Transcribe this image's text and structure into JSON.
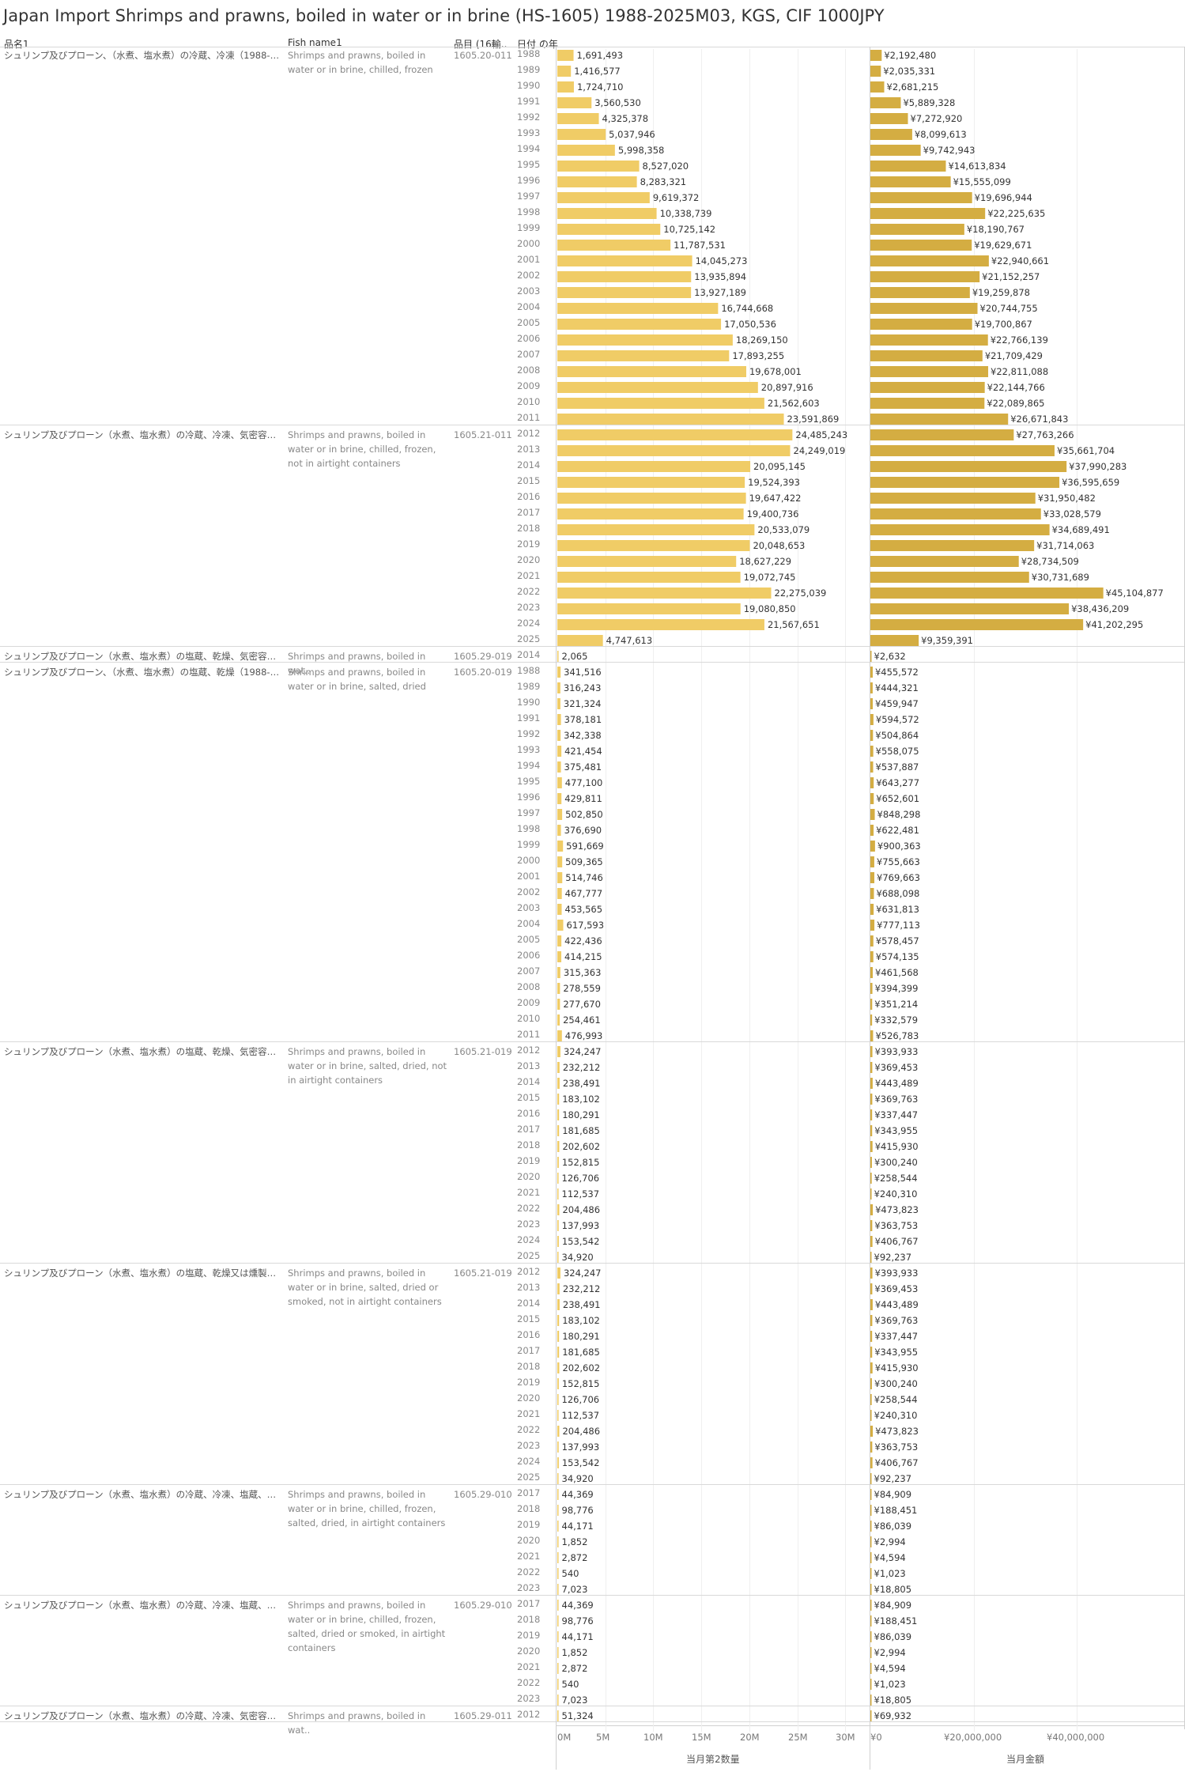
{
  "title": "Japan Import Shrimps and prawns, boiled in water or in brine (HS-1605) 1988-2025M03, KGS, CIF 1000JPY",
  "headers": {
    "col_name": "品名1",
    "col_fish": "Fish name1",
    "col_code": "品目 (16輸..",
    "col_year": "日付 の年"
  },
  "axes": {
    "qty_title": "当月第2数量",
    "val_title": "当月金額",
    "qty_ticks": [
      "0M",
      "5M",
      "10M",
      "15M",
      "20M",
      "25M",
      "30M"
    ],
    "val_ticks": [
      "¥0",
      "¥20,000,000",
      "¥40,000,000"
    ]
  },
  "colors": {
    "qty_bar": "#f0cc66",
    "val_bar": "#d4ad42",
    "grid": "#efefef",
    "separator": "#d9d9d9"
  },
  "chart_data": {
    "type": "bar",
    "orientation": "horizontal",
    "qty_axis": {
      "label": "当月第2数量",
      "range": [
        0,
        31700000
      ]
    },
    "val_axis": {
      "label": "当月金額",
      "range": [
        0,
        59700000
      ],
      "prefix": "¥"
    },
    "groups": [
      {
        "name": "シュリンプ及びプローン、（水煮、塩水煮）の冷蔵、冷凍（1988-2011..",
        "fish": "Shrimps and prawns, boiled in water or in brine, chilled, frozen",
        "code": "1605.20-011",
        "years": [
          1988,
          1989,
          1990,
          1991,
          1992,
          1993,
          1994,
          1995,
          1996,
          1997,
          1998,
          1999,
          2000,
          2001,
          2002,
          2003,
          2004,
          2005,
          2006,
          2007,
          2008,
          2009,
          2010,
          2011
        ],
        "qty": [
          1691493,
          1416577,
          1724710,
          3560530,
          4325378,
          5037946,
          5998358,
          8527020,
          8283321,
          9619372,
          10338739,
          10725142,
          11787531,
          14045273,
          13935894,
          13927189,
          16744668,
          17050536,
          18269150,
          17893255,
          19678001,
          20897916,
          21562603,
          23591869
        ],
        "qty_labels": [
          "1,691,493",
          "1,416,577",
          "1,724,710",
          "3,560,530",
          "4,325,378",
          "5,037,946",
          "5,998,358",
          "8,527,020",
          "8,283,321",
          "9,619,372",
          "10,338,739",
          "10,725,142",
          "11,787,531",
          "14,045,273",
          "13,935,894",
          "13,927,189",
          "16,744,668",
          "17,050,536",
          "18,269,150",
          "17,893,255",
          "19,678,001",
          "20,897,916",
          "21,562,603",
          "23,591,869"
        ],
        "val": [
          2192480,
          2035331,
          2681215,
          5889328,
          7272920,
          8099613,
          9742943,
          14613834,
          15555099,
          19696944,
          22225635,
          18190767,
          19629671,
          22940661,
          21152257,
          19259878,
          20744755,
          19700867,
          22766139,
          21709429,
          22811088,
          22144766,
          22089865,
          26671843
        ],
        "val_labels": [
          "¥2,192,480",
          "¥2,035,331",
          "¥2,681,215",
          "¥5,889,328",
          "¥7,272,920",
          "¥8,099,613",
          "¥9,742,943",
          "¥14,613,834",
          "¥15,555,099",
          "¥19,696,944",
          "¥22,225,635",
          "¥18,190,767",
          "¥19,629,671",
          "¥22,940,661",
          "¥21,152,257",
          "¥19,259,878",
          "¥20,744,755",
          "¥19,700,867",
          "¥22,766,139",
          "¥21,709,429",
          "¥22,811,088",
          "¥22,144,766",
          "¥22,089,865",
          "¥26,671,843"
        ]
      },
      {
        "name": "シュリンプ及びプローン（水煮、塩水煮）の冷蔵、冷凍、気密容器入りで..",
        "fish": "Shrimps and prawns, boiled in water or in brine, chilled, frozen, not in airtight containers",
        "code": "1605.21-011",
        "years": [
          2012,
          2013,
          2014,
          2015,
          2016,
          2017,
          2018,
          2019,
          2020,
          2021,
          2022,
          2023,
          2024,
          2025
        ],
        "qty": [
          24485243,
          24249019,
          20095145,
          19524393,
          19647422,
          19400736,
          20533079,
          20048653,
          18627229,
          19072745,
          22275039,
          19080850,
          21567651,
          4747613
        ],
        "qty_labels": [
          "24,485,243",
          "24,249,019",
          "20,095,145",
          "19,524,393",
          "19,647,422",
          "19,400,736",
          "20,533,079",
          "20,048,653",
          "18,627,229",
          "19,072,745",
          "22,275,039",
          "19,080,850",
          "21,567,651",
          "4,747,613"
        ],
        "val": [
          27763266,
          35661704,
          37990283,
          36595659,
          31950482,
          33028579,
          34689491,
          31714063,
          28734509,
          30731689,
          45104877,
          38436209,
          41202295,
          9359391
        ],
        "val_labels": [
          "¥27,763,266",
          "¥35,661,704",
          "¥37,990,283",
          "¥36,595,659",
          "¥31,950,482",
          "¥33,028,579",
          "¥34,689,491",
          "¥31,714,063",
          "¥28,734,509",
          "¥30,731,689",
          "¥45,104,877",
          "¥38,436,209",
          "¥41,202,295",
          "¥9,359,391"
        ]
      },
      {
        "name": "シュリンプ及びプローン（水煮、塩水煮）の塩蔵、乾燥、気密容器入り..",
        "fish": "Shrimps and prawns, boiled in wat..",
        "code": "1605.29-019",
        "years": [
          2014
        ],
        "qty": [
          2065
        ],
        "qty_labels": [
          "2,065"
        ],
        "val": [
          2632
        ],
        "val_labels": [
          "¥2,632"
        ]
      },
      {
        "name": "シュリンプ及びプローン、（水煮、塩水煮）の塩蔵、乾燥（1988-2011..",
        "fish": "Shrimps and prawns, boiled in water or in brine, salted, dried",
        "code": "1605.20-019",
        "years": [
          1988,
          1989,
          1990,
          1991,
          1992,
          1993,
          1994,
          1995,
          1996,
          1997,
          1998,
          1999,
          2000,
          2001,
          2002,
          2003,
          2004,
          2005,
          2006,
          2007,
          2008,
          2009,
          2010,
          2011
        ],
        "qty": [
          341516,
          316243,
          321324,
          378181,
          342338,
          421454,
          375481,
          477100,
          429811,
          502850,
          376690,
          591669,
          509365,
          514746,
          467777,
          453565,
          617593,
          422436,
          414215,
          315363,
          278559,
          277670,
          254461,
          476993
        ],
        "qty_labels": [
          "341,516",
          "316,243",
          "321,324",
          "378,181",
          "342,338",
          "421,454",
          "375,481",
          "477,100",
          "429,811",
          "502,850",
          "376,690",
          "591,669",
          "509,365",
          "514,746",
          "467,777",
          "453,565",
          "617,593",
          "422,436",
          "414,215",
          "315,363",
          "278,559",
          "277,670",
          "254,461",
          "476,993"
        ],
        "val": [
          455572,
          444321,
          459947,
          594572,
          504864,
          558075,
          537887,
          643277,
          652601,
          848298,
          622481,
          900363,
          755663,
          769663,
          688098,
          631813,
          777113,
          578457,
          574135,
          461568,
          394399,
          351214,
          332579,
          526783
        ],
        "val_labels": [
          "¥455,572",
          "¥444,321",
          "¥459,947",
          "¥594,572",
          "¥504,864",
          "¥558,075",
          "¥537,887",
          "¥643,277",
          "¥652,601",
          "¥848,298",
          "¥622,481",
          "¥900,363",
          "¥755,663",
          "¥769,663",
          "¥688,098",
          "¥631,813",
          "¥777,113",
          "¥578,457",
          "¥574,135",
          "¥461,568",
          "¥394,399",
          "¥351,214",
          "¥332,579",
          "¥526,783"
        ]
      },
      {
        "name": "シュリンプ及びプローン（水煮、塩水煮）の塩蔵、乾燥、気密容器入りで..",
        "fish": "Shrimps and prawns, boiled in water or in brine, salted, dried, not in airtight containers",
        "code": "1605.21-019",
        "years": [
          2012,
          2013,
          2014,
          2015,
          2016,
          2017,
          2018,
          2019,
          2020,
          2021,
          2022,
          2023,
          2024,
          2025
        ],
        "qty": [
          324247,
          232212,
          238491,
          183102,
          180291,
          181685,
          202602,
          152815,
          126706,
          112537,
          204486,
          137993,
          153542,
          34920
        ],
        "qty_labels": [
          "324,247",
          "232,212",
          "238,491",
          "183,102",
          "180,291",
          "181,685",
          "202,602",
          "152,815",
          "126,706",
          "112,537",
          "204,486",
          "137,993",
          "153,542",
          "34,920"
        ],
        "val": [
          393933,
          369453,
          443489,
          369763,
          337447,
          343955,
          415930,
          300240,
          258544,
          240310,
          473823,
          363753,
          406767,
          92237
        ],
        "val_labels": [
          "¥393,933",
          "¥369,453",
          "¥443,489",
          "¥369,763",
          "¥337,447",
          "¥343,955",
          "¥415,930",
          "¥300,240",
          "¥258,544",
          "¥240,310",
          "¥473,823",
          "¥363,753",
          "¥406,767",
          "¥92,237"
        ]
      },
      {
        "name": "シュリンプ及びプローン（水煮、塩水煮）の塩蔵、乾燥又は燻製、気密..",
        "fish": "Shrimps and prawns, boiled in water or in brine, salted, dried or smoked, not in airtight containers",
        "code": "1605.21-019",
        "years": [
          2012,
          2013,
          2014,
          2015,
          2016,
          2017,
          2018,
          2019,
          2020,
          2021,
          2022,
          2023,
          2024,
          2025
        ],
        "qty": [
          324247,
          232212,
          238491,
          183102,
          180291,
          181685,
          202602,
          152815,
          126706,
          112537,
          204486,
          137993,
          153542,
          34920
        ],
        "qty_labels": [
          "324,247",
          "232,212",
          "238,491",
          "183,102",
          "180,291",
          "181,685",
          "202,602",
          "152,815",
          "126,706",
          "112,537",
          "204,486",
          "137,993",
          "153,542",
          "34,920"
        ],
        "val": [
          393933,
          369453,
          443489,
          369763,
          337447,
          343955,
          415930,
          300240,
          258544,
          240310,
          473823,
          363753,
          406767,
          92237
        ],
        "val_labels": [
          "¥393,933",
          "¥369,453",
          "¥443,489",
          "¥369,763",
          "¥337,447",
          "¥343,955",
          "¥415,930",
          "¥300,240",
          "¥258,544",
          "¥240,310",
          "¥473,823",
          "¥363,753",
          "¥406,767",
          "¥92,237"
        ]
      },
      {
        "name": "シュリンプ及びプローン（水煮、塩水煮）の冷蔵、冷凍、塩蔵、乾燥、気..",
        "fish": "Shrimps and prawns, boiled in water or in brine, chilled, frozen, salted, dried, in airtight containers",
        "code": "1605.29-010",
        "years": [
          2017,
          2018,
          2019,
          2020,
          2021,
          2022,
          2023
        ],
        "qty": [
          44369,
          98776,
          44171,
          1852,
          2872,
          540,
          7023
        ],
        "qty_labels": [
          "44,369",
          "98,776",
          "44,171",
          "1,852",
          "2,872",
          "540",
          "7,023"
        ],
        "val": [
          84909,
          188451,
          86039,
          2994,
          4594,
          1023,
          18805
        ],
        "val_labels": [
          "¥84,909",
          "¥188,451",
          "¥86,039",
          "¥2,994",
          "¥4,594",
          "¥1,023",
          "¥18,805"
        ]
      },
      {
        "name": "シュリンプ及びプローン（水煮、塩水煮）の冷蔵、冷凍、塩蔵、乾燥又..",
        "fish": "Shrimps and prawns, boiled in water or in brine, chilled, frozen, salted, dried or smoked, in airtight containers",
        "code": "1605.29-010",
        "years": [
          2017,
          2018,
          2019,
          2020,
          2021,
          2022,
          2023
        ],
        "qty": [
          44369,
          98776,
          44171,
          1852,
          2872,
          540,
          7023
        ],
        "qty_labels": [
          "44,369",
          "98,776",
          "44,171",
          "1,852",
          "2,872",
          "540",
          "7,023"
        ],
        "val": [
          84909,
          188451,
          86039,
          2994,
          4594,
          1023,
          18805
        ],
        "val_labels": [
          "¥84,909",
          "¥188,451",
          "¥86,039",
          "¥2,994",
          "¥4,594",
          "¥1,023",
          "¥18,805"
        ]
      },
      {
        "name": "シュリンプ及びプローン（水煮、塩水煮）の冷蔵、冷凍、気密容器入り..",
        "fish": "Shrimps and prawns, boiled in wat..",
        "code": "1605.29-011",
        "years": [
          2012
        ],
        "qty": [
          51324
        ],
        "qty_labels": [
          "51,324"
        ],
        "val": [
          69932
        ],
        "val_labels": [
          "¥69,932"
        ]
      }
    ]
  }
}
